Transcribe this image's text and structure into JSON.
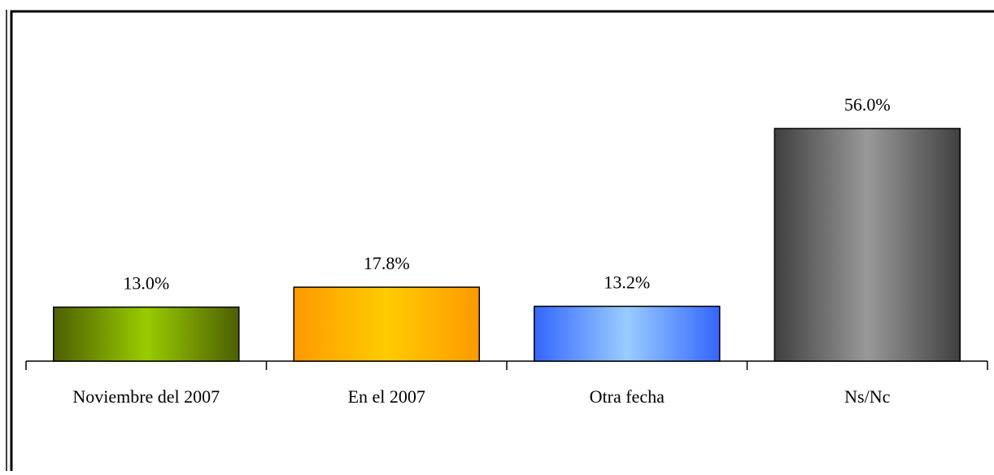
{
  "chart_data": {
    "type": "bar",
    "categories": [
      "Noviembre del 2007",
      "En el 2007",
      "Otra fecha",
      "Ns/Nc"
    ],
    "values": [
      13.0,
      17.8,
      13.2,
      56.0
    ],
    "value_labels": [
      "13.0%",
      "17.8%",
      "13.2%",
      "56.0%"
    ],
    "colors": [
      "#99cc00",
      "#ffcc00",
      "#99ccff",
      "#999999"
    ],
    "edge_colors": [
      "#4d5f00",
      "#ff9900",
      "#3366ff",
      "#404040"
    ]
  }
}
